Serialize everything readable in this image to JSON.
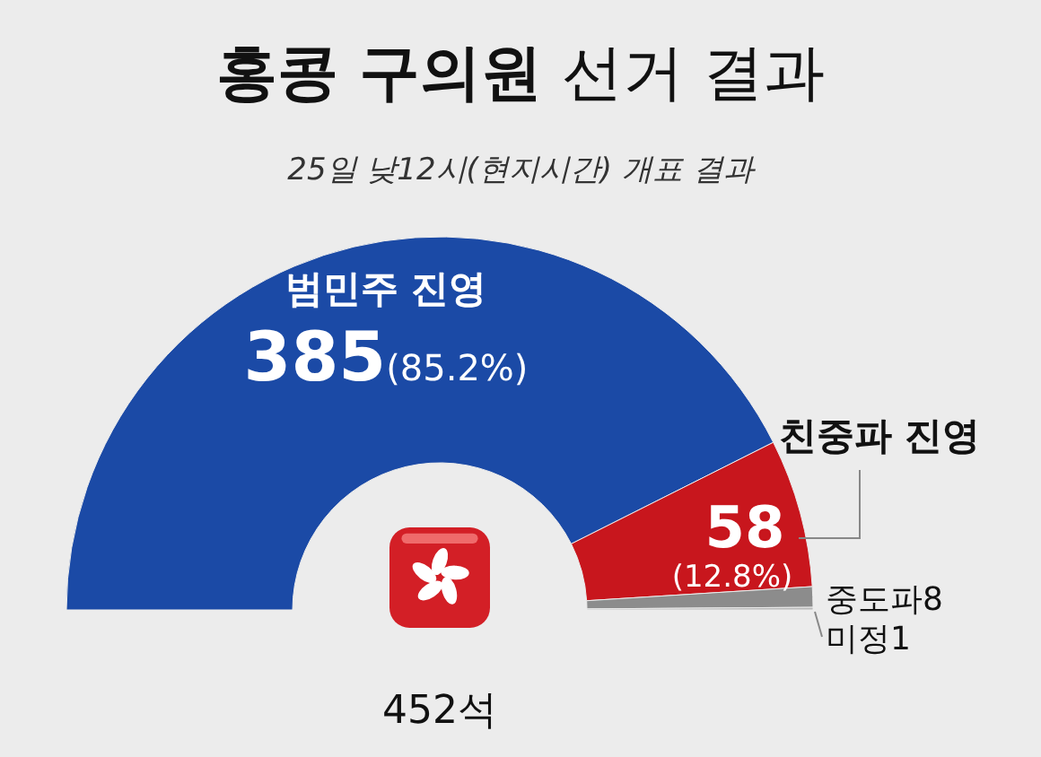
{
  "chart_data": {
    "type": "donut",
    "title": "홍콩 구의원 선거 결과",
    "subtitle": "25일 낮12시(현지시간) 개표 결과",
    "categories": [
      "범민주 진영",
      "친중파 진영",
      "중도파",
      "미정"
    ],
    "values": [
      385,
      58,
      8,
      1
    ],
    "colors": [
      "#1b4aa6",
      "#c8161d",
      "#8c8c8c",
      "#b8b8b8"
    ],
    "data_labels": true,
    "annotations": [
      "(85.2%)",
      "(12.8%)",
      "452석"
    ]
  }
}
